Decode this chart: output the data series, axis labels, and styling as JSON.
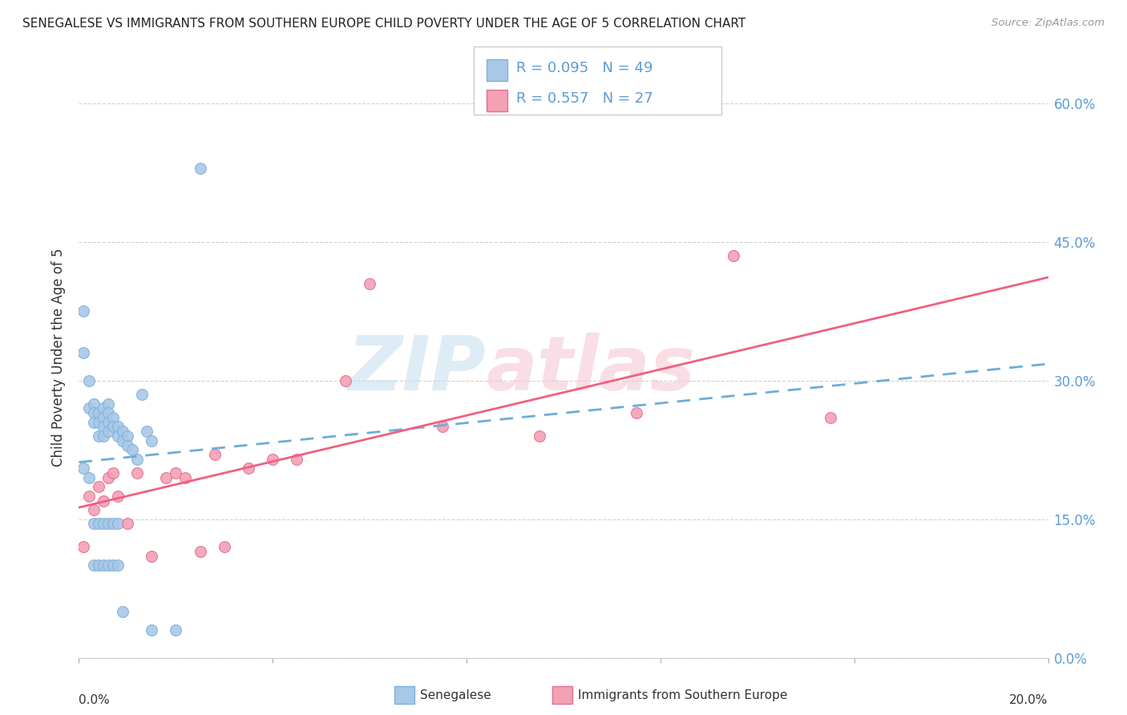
{
  "title": "SENEGALESE VS IMMIGRANTS FROM SOUTHERN EUROPE CHILD POVERTY UNDER THE AGE OF 5 CORRELATION CHART",
  "source": "Source: ZipAtlas.com",
  "ylabel": "Child Poverty Under the Age of 5",
  "ytick_labels": [
    "0.0%",
    "15.0%",
    "30.0%",
    "45.0%",
    "60.0%"
  ],
  "ytick_vals": [
    0.0,
    0.15,
    0.3,
    0.45,
    0.6
  ],
  "xlim": [
    0.0,
    0.2
  ],
  "ylim": [
    0.0,
    0.65
  ],
  "legend_label1": "Senegalese",
  "legend_label2": "Immigrants from Southern Europe",
  "color_blue": "#a8c8e8",
  "color_pink": "#f4a0b5",
  "trendline_blue_color": "#6aaed6",
  "trendline_pink_color": "#f06080",
  "blue_r": "0.095",
  "blue_n": "49",
  "pink_r": "0.557",
  "pink_n": "27",
  "blue_x": [
    0.001,
    0.001,
    0.002,
    0.002,
    0.003,
    0.003,
    0.003,
    0.004,
    0.004,
    0.004,
    0.005,
    0.005,
    0.005,
    0.005,
    0.006,
    0.006,
    0.006,
    0.006,
    0.007,
    0.007,
    0.008,
    0.008,
    0.009,
    0.009,
    0.01,
    0.01,
    0.011,
    0.012,
    0.013,
    0.014,
    0.015,
    0.001,
    0.002,
    0.003,
    0.004,
    0.005,
    0.006,
    0.007,
    0.008,
    0.003,
    0.004,
    0.005,
    0.006,
    0.007,
    0.008,
    0.009,
    0.015,
    0.02,
    0.025
  ],
  "blue_y": [
    0.375,
    0.33,
    0.3,
    0.27,
    0.275,
    0.265,
    0.255,
    0.265,
    0.255,
    0.24,
    0.27,
    0.26,
    0.25,
    0.24,
    0.275,
    0.265,
    0.255,
    0.245,
    0.26,
    0.25,
    0.25,
    0.24,
    0.245,
    0.235,
    0.24,
    0.23,
    0.225,
    0.215,
    0.285,
    0.245,
    0.235,
    0.205,
    0.195,
    0.145,
    0.145,
    0.145,
    0.145,
    0.145,
    0.145,
    0.1,
    0.1,
    0.1,
    0.1,
    0.1,
    0.1,
    0.05,
    0.03,
    0.03,
    0.53
  ],
  "pink_x": [
    0.001,
    0.002,
    0.003,
    0.004,
    0.005,
    0.006,
    0.007,
    0.008,
    0.01,
    0.012,
    0.015,
    0.018,
    0.02,
    0.022,
    0.025,
    0.028,
    0.03,
    0.035,
    0.04,
    0.045,
    0.055,
    0.06,
    0.075,
    0.095,
    0.115,
    0.135,
    0.155
  ],
  "pink_y": [
    0.12,
    0.175,
    0.16,
    0.185,
    0.17,
    0.195,
    0.2,
    0.175,
    0.145,
    0.2,
    0.11,
    0.195,
    0.2,
    0.195,
    0.115,
    0.22,
    0.12,
    0.205,
    0.215,
    0.215,
    0.3,
    0.405,
    0.25,
    0.24,
    0.265,
    0.435,
    0.26
  ]
}
